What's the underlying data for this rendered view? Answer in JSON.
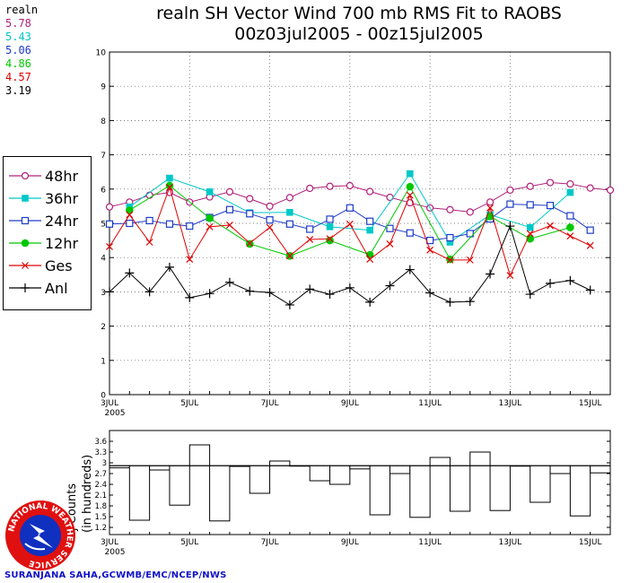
{
  "chart_data": [
    {
      "type": "line",
      "title": "realn SH Vector Wind 700 mb RMS Fit to RAOBS",
      "subtitle": "00z03jul2005 - 00z15jul2005",
      "xlabel": "",
      "ylabel": "",
      "ylim": [
        0,
        10
      ],
      "yticks": [
        "0",
        "1",
        "2",
        "3",
        "4",
        "5",
        "6",
        "7",
        "8",
        "9",
        "10"
      ],
      "x": [
        0,
        0.5,
        1,
        1.5,
        2,
        2.5,
        3,
        3.5,
        4,
        4.5,
        5,
        5.5,
        6,
        6.5,
        7,
        7.5,
        8,
        8.5,
        9,
        9.5,
        10,
        10.5,
        11,
        11.5,
        12,
        12.5
      ],
      "xticks": [
        {
          "pos": 0,
          "label": "3JUL",
          "sublabel": "2005"
        },
        {
          "pos": 2,
          "label": "5JUL",
          "sublabel": ""
        },
        {
          "pos": 4,
          "label": "7JUL",
          "sublabel": ""
        },
        {
          "pos": 6,
          "label": "9JUL",
          "sublabel": ""
        },
        {
          "pos": 8,
          "label": "11JUL",
          "sublabel": ""
        },
        {
          "pos": 10,
          "label": "13JUL",
          "sublabel": ""
        },
        {
          "pos": 12,
          "label": "15JUL",
          "sublabel": ""
        }
      ],
      "grid": true,
      "legend_position": "left",
      "mean_header": "realn",
      "series": [
        {
          "name": "48hr",
          "color": "#b0207a",
          "marker": "open-circle",
          "mean": "5.78",
          "values": [
            5.48,
            5.62,
            5.82,
            5.9,
            5.62,
            5.77,
            5.92,
            5.72,
            5.5,
            5.75,
            6.02,
            6.08,
            6.1,
            5.93,
            5.76,
            5.6,
            5.45,
            5.4,
            5.33,
            5.62,
            5.97,
            6.08,
            6.19,
            6.15,
            6.03,
            5.97
          ]
        },
        {
          "name": "36hr",
          "color": "#00c8c8",
          "marker": "filled-square",
          "mean": "5.43",
          "values": [
            null,
            5.48,
            null,
            6.32,
            null,
            5.92,
            null,
            5.31,
            null,
            5.32,
            null,
            4.9,
            null,
            4.8,
            null,
            6.45,
            null,
            4.45,
            null,
            5.25,
            null,
            4.88,
            null,
            5.9,
            null,
            null
          ]
        },
        {
          "name": "24hr",
          "color": "#1e3cc8",
          "marker": "open-square",
          "mean": "5.06",
          "values": [
            4.98,
            5.0,
            5.08,
            4.98,
            4.92,
            5.17,
            5.4,
            5.28,
            5.1,
            4.98,
            4.83,
            5.12,
            5.45,
            5.06,
            4.85,
            4.72,
            4.5,
            4.58,
            4.7,
            5.13,
            5.56,
            5.54,
            5.52,
            5.22,
            4.8,
            null
          ]
        },
        {
          "name": "12hr",
          "color": "#00c800",
          "marker": "filled-circle",
          "mean": "4.86",
          "values": [
            null,
            5.38,
            null,
            6.1,
            null,
            5.15,
            null,
            4.4,
            null,
            4.05,
            null,
            4.5,
            null,
            4.08,
            null,
            6.07,
            null,
            3.95,
            null,
            5.2,
            null,
            4.55,
            null,
            4.88,
            null,
            null
          ]
        },
        {
          "name": "Ges",
          "color": "#e00000",
          "marker": "x",
          "mean": "4.57",
          "values": [
            4.32,
            5.25,
            4.45,
            6.05,
            3.95,
            4.9,
            4.95,
            4.42,
            4.88,
            4.05,
            4.53,
            4.55,
            4.98,
            3.95,
            4.4,
            5.82,
            4.22,
            3.93,
            3.93,
            5.45,
            3.48,
            4.7,
            4.93,
            4.63,
            4.35,
            null
          ]
        },
        {
          "name": "Anl",
          "color": "#000000",
          "marker": "plus",
          "mean": "3.19",
          "values": [
            3.0,
            3.55,
            3.0,
            3.72,
            2.83,
            2.95,
            3.28,
            3.02,
            2.98,
            2.62,
            3.08,
            2.93,
            3.12,
            2.7,
            3.18,
            3.65,
            2.97,
            2.7,
            2.72,
            3.52,
            4.92,
            2.93,
            3.25,
            3.33,
            3.05,
            null
          ]
        }
      ]
    },
    {
      "type": "bar",
      "ylabel": "Counts",
      "ylabel_sub": "(in hundreds)",
      "ylabel_prefix": "j",
      "ylim": [
        1.0,
        3.9
      ],
      "yticks": [
        "1.2",
        "1.5",
        "1.8",
        "2.1",
        "2.4",
        "2.7",
        "3",
        "3.3",
        "3.6"
      ],
      "baseline": 2.92,
      "x": [
        0,
        0.5,
        1,
        1.5,
        2,
        2.5,
        3,
        3.5,
        4,
        4.5,
        5,
        5.5,
        6,
        6.5,
        7,
        7.5,
        8,
        8.5,
        9,
        9.5,
        10,
        10.5,
        11,
        11.5,
        12
      ],
      "values": [
        2.86,
        1.4,
        2.8,
        1.82,
        3.5,
        1.38,
        2.9,
        2.15,
        3.05,
        2.92,
        2.5,
        2.4,
        2.83,
        1.55,
        2.7,
        1.48,
        3.15,
        1.65,
        3.3,
        1.67,
        2.92,
        1.9,
        2.7,
        1.52,
        2.72
      ],
      "xticks": [
        {
          "pos": 0,
          "label": "3JUL",
          "sublabel": "2005"
        },
        {
          "pos": 2,
          "label": "5JUL",
          "sublabel": ""
        },
        {
          "pos": 4,
          "label": "7JUL",
          "sublabel": ""
        },
        {
          "pos": 6,
          "label": "9JUL",
          "sublabel": ""
        },
        {
          "pos": 8,
          "label": "11JUL",
          "sublabel": ""
        },
        {
          "pos": 10,
          "label": "13JUL",
          "sublabel": ""
        },
        {
          "pos": 12,
          "label": "15JUL",
          "sublabel": ""
        }
      ]
    }
  ],
  "logo": {
    "ring_text": "NATIONAL WEATHER SERVICE",
    "colors": {
      "outer": "#e01010",
      "inner": "#1030c0",
      "lightning": "#ffffff"
    }
  },
  "footer": "SURANJANA SAHA,GCWMB/EMC/NCEP/NWS"
}
